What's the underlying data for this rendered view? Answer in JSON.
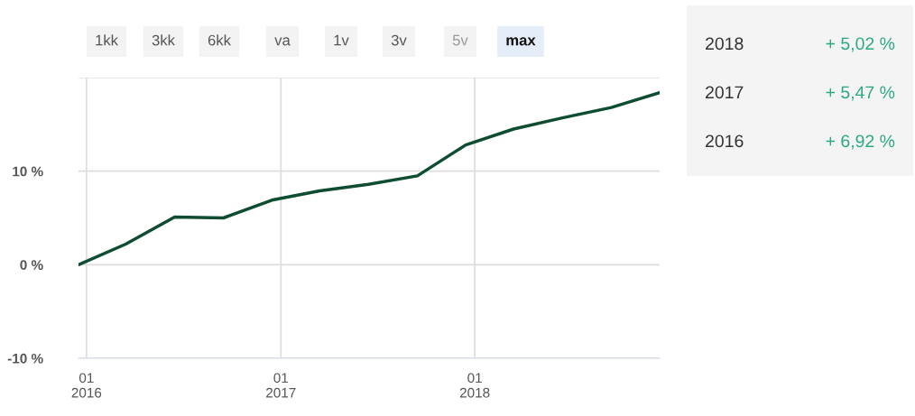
{
  "chart_data": {
    "type": "line",
    "x": [
      "2015-12-17",
      "2016-03-15",
      "2016-06-15",
      "2016-09-15",
      "2016-12-15",
      "2017-03-15",
      "2017-06-15",
      "2017-09-15",
      "2017-12-15",
      "2018-03-15",
      "2018-06-15",
      "2018-09-15",
      "2018-12-15"
    ],
    "series": [
      {
        "color": "#0f4d32",
        "values": [
          0,
          2.2,
          5.1,
          5.0,
          6.9,
          7.9,
          8.6,
          9.5,
          12.8,
          14.5,
          15.7,
          16.8,
          18.4
        ]
      }
    ],
    "xlim": [
      "2015-12-17",
      "2018-12-15"
    ],
    "xticks": [
      {
        "value": "2016-01-01",
        "label": "01\n2016"
      },
      {
        "value": "2017-01-01",
        "label": "01\n2017"
      },
      {
        "value": "2018-01-01",
        "label": "01\n2018"
      }
    ],
    "ylim": [
      -10,
      20
    ],
    "yticks": [
      {
        "value": -10,
        "label": "-10 %"
      },
      {
        "value": 0,
        "label": "0 %"
      },
      {
        "value": 10,
        "label": "10 %"
      },
      {
        "value": 20,
        "label": null
      }
    ],
    "grid": true,
    "marker": "none",
    "line_style": "solid",
    "legend": false,
    "annotations": [
      "1kk",
      "3kk",
      "6kk",
      "va",
      "1v",
      "3v",
      "5v",
      "max",
      "2018",
      "+ 5,02 %",
      "2017",
      "+ 5,47 %",
      "2016",
      "+ 6,92 %"
    ]
  }
}
